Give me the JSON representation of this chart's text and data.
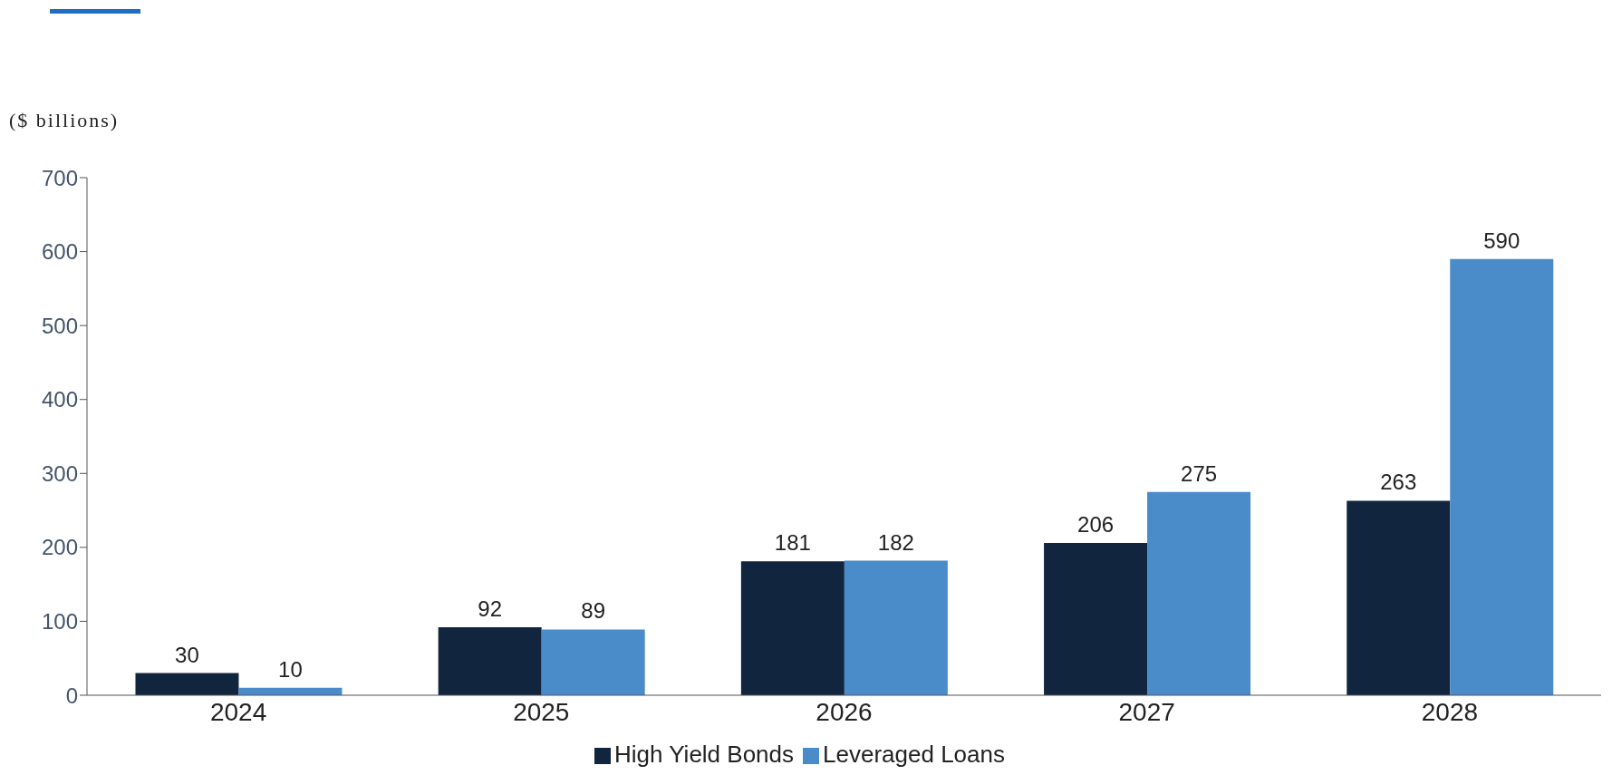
{
  "chart_data": {
    "type": "bar",
    "ylabel": "($ billions)",
    "categories": [
      "2024",
      "2025",
      "2026",
      "2027",
      "2028"
    ],
    "series": [
      {
        "name": "High Yield Bonds",
        "color": "#12253f",
        "values": [
          30,
          92,
          181,
          206,
          263
        ]
      },
      {
        "name": "Leveraged Loans",
        "color": "#4a8bc9",
        "values": [
          10,
          89,
          182,
          275,
          590
        ]
      }
    ],
    "ylim": [
      0,
      700
    ],
    "yticks": [
      0,
      100,
      200,
      300,
      400,
      500,
      600,
      700
    ],
    "grid": false,
    "legend": "bottom",
    "data_labels": true
  }
}
